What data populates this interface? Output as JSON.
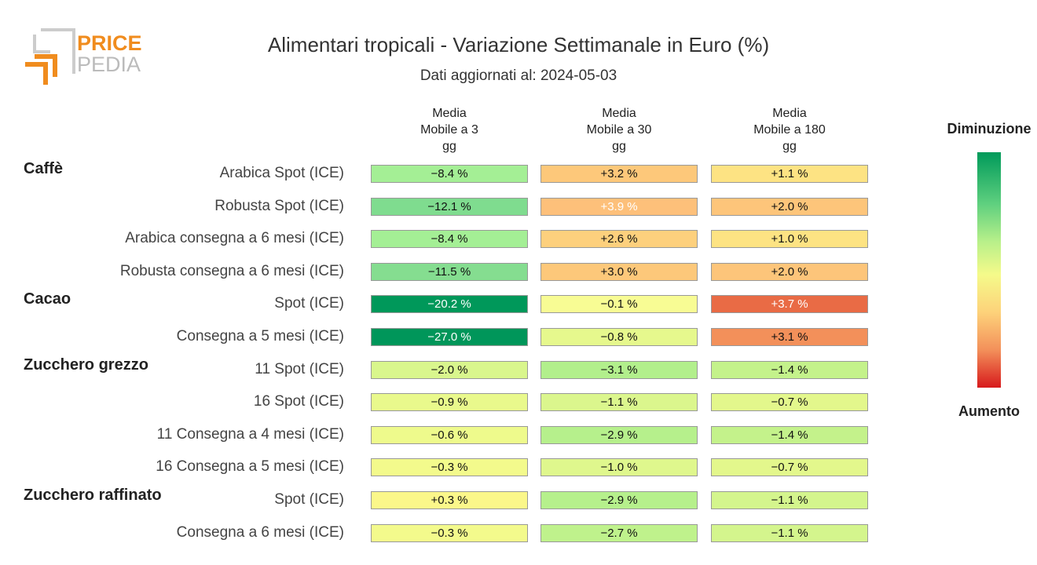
{
  "logo": {
    "word1": "PRICE",
    "word2": "PEDIA"
  },
  "header": {
    "title": "Alimentari tropicali - Variazione Settimanale in Euro (%)",
    "subtitle": "Dati aggiornati al: 2024-05-03"
  },
  "legend": {
    "top": "Diminuzione",
    "bottom": "Aumento"
  },
  "colors": {
    "strong_down": "#009a5a",
    "down": "#7fdc8f",
    "light_down": "#b8f08a",
    "neutral": "#f5fa8a",
    "light_up": "#fde07a",
    "up": "#fdc57a",
    "strong_up": "#e96b45"
  },
  "chart_data": {
    "type": "table",
    "title": "Alimentari tropicali - Variazione Settimanale in Euro (%)",
    "subtitle": "Dati aggiornati al: 2024-05-03",
    "columns": [
      "Media\nMobile a 3\ngg",
      "Media\nMobile a 30\ngg",
      "Media\nMobile a 180\ngg"
    ],
    "groups": [
      "Caffè",
      "Cacao",
      "Zucchero grezzo",
      "Zucchero raffinato"
    ],
    "rows": [
      {
        "group": "Caffè",
        "label": "Arabica Spot (ICE)",
        "values": [
          -8.4,
          3.2,
          1.1
        ],
        "text": [
          "−8.4 %",
          "+3.2 %",
          "+1.1 %"
        ]
      },
      {
        "group": "",
        "label": "Robusta Spot (ICE)",
        "values": [
          -12.1,
          3.9,
          2.0
        ],
        "text": [
          "−12.1 %",
          "+3.9 %",
          "+2.0 %"
        ]
      },
      {
        "group": "",
        "label": "Arabica consegna a 6 mesi (ICE)",
        "values": [
          -8.4,
          2.6,
          1.0
        ],
        "text": [
          "−8.4 %",
          "+2.6 %",
          "+1.0 %"
        ]
      },
      {
        "group": "",
        "label": "Robusta consegna a 6 mesi (ICE)",
        "values": [
          -11.5,
          3.0,
          2.0
        ],
        "text": [
          "−11.5 %",
          "+3.0 %",
          "+2.0 %"
        ]
      },
      {
        "group": "Cacao",
        "label": "Spot (ICE)",
        "values": [
          -20.2,
          -0.1,
          3.7
        ],
        "text": [
          "−20.2 %",
          "−0.1 %",
          "+3.7 %"
        ]
      },
      {
        "group": "",
        "label": "Consegna a 5 mesi (ICE)",
        "values": [
          -27.0,
          -0.8,
          3.1
        ],
        "text": [
          "−27.0 %",
          "−0.8 %",
          "+3.1 %"
        ]
      },
      {
        "group": "Zucchero grezzo",
        "label": "11 Spot (ICE)",
        "values": [
          -2.0,
          -3.1,
          -1.4
        ],
        "text": [
          "−2.0 %",
          "−3.1 %",
          "−1.4 %"
        ]
      },
      {
        "group": "",
        "label": "16 Spot (ICE)",
        "values": [
          -0.9,
          -1.1,
          -0.7
        ],
        "text": [
          "−0.9 %",
          "−1.1 %",
          "−0.7 %"
        ]
      },
      {
        "group": "",
        "label": "11 Consegna a 4 mesi (ICE)",
        "values": [
          -0.6,
          -2.9,
          -1.4
        ],
        "text": [
          "−0.6 %",
          "−2.9 %",
          "−1.4 %"
        ]
      },
      {
        "group": "",
        "label": "16 Consegna a 5 mesi (ICE)",
        "values": [
          -0.3,
          -1.0,
          -0.7
        ],
        "text": [
          "−0.3 %",
          "−1.0 %",
          "−0.7 %"
        ]
      },
      {
        "group": "Zucchero raffinato",
        "label": "Spot (ICE)",
        "values": [
          0.3,
          -2.9,
          -1.1
        ],
        "text": [
          "+0.3 %",
          "−2.9 %",
          "−1.1 %"
        ]
      },
      {
        "group": "",
        "label": "Consegna a 6 mesi (ICE)",
        "values": [
          -0.3,
          -2.7,
          -1.1
        ],
        "text": [
          "−0.3 %",
          "−2.7 %",
          "−1.1 %"
        ]
      }
    ],
    "cell_colors": [
      [
        "#a4ef95",
        "#fdc87a",
        "#fde383"
      ],
      [
        "#7fdc8f",
        "#fdc07a",
        "#fdc57a"
      ],
      [
        "#a4ef95",
        "#fdd07d",
        "#fde383"
      ],
      [
        "#85dd90",
        "#fdc87a",
        "#fdc57a"
      ],
      [
        "#00985a",
        "#f8fc94",
        "#e96b45"
      ],
      [
        "#00965a",
        "#e6f88d",
        "#f3905a"
      ],
      [
        "#d9f68d",
        "#b2ef8c",
        "#c4f28b"
      ],
      [
        "#e9f98c",
        "#dbf68d",
        "#e3f78c"
      ],
      [
        "#eefa8c",
        "#b6f08c",
        "#c4f28b"
      ],
      [
        "#f3fa8c",
        "#dff78d",
        "#e3f78c"
      ],
      [
        "#fbf78a",
        "#b6f08c",
        "#d4f58d"
      ],
      [
        "#f3fa8c",
        "#bff28c",
        "#d4f58d"
      ]
    ],
    "legend": {
      "top": "Diminuzione",
      "bottom": "Aumento"
    }
  }
}
